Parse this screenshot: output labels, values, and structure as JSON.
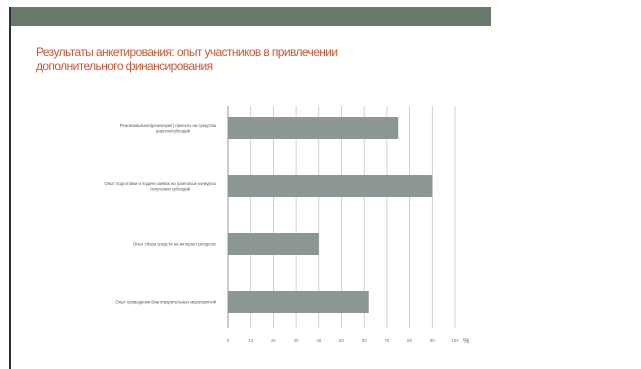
{
  "colors": {
    "top_bar": "#677a6d",
    "left_line": "#2f2f2f",
    "title": "#c8583a",
    "bar": "#8b9790",
    "grid": "#c4c4c4",
    "axis": "#8a8a8a"
  },
  "slide": {
    "title_lines": [
      "Результаты анкетирования: опыт участников в привлечении",
      "дополнительного финансирования"
    ]
  },
  "chart_data": {
    "type": "bar",
    "orientation": "horizontal",
    "categories": [
      [
        "Реализовывали(реализуют) проекты на средства",
        "грантов/субсидий"
      ],
      [
        "Опыт подготовки и подачи заявок на грантовые конкурсы",
        "получения субсидий"
      ],
      [
        "Опыт сбора средств на интернет ресурсах"
      ],
      [
        "Опыт проведения благотворительных мероприятий"
      ]
    ],
    "values": [
      75,
      90,
      40,
      62
    ],
    "xlim": [
      0,
      100
    ],
    "xticks": [
      0,
      10,
      20,
      30,
      40,
      50,
      60,
      70,
      80,
      90,
      100
    ],
    "unit": "%",
    "grid": true
  }
}
